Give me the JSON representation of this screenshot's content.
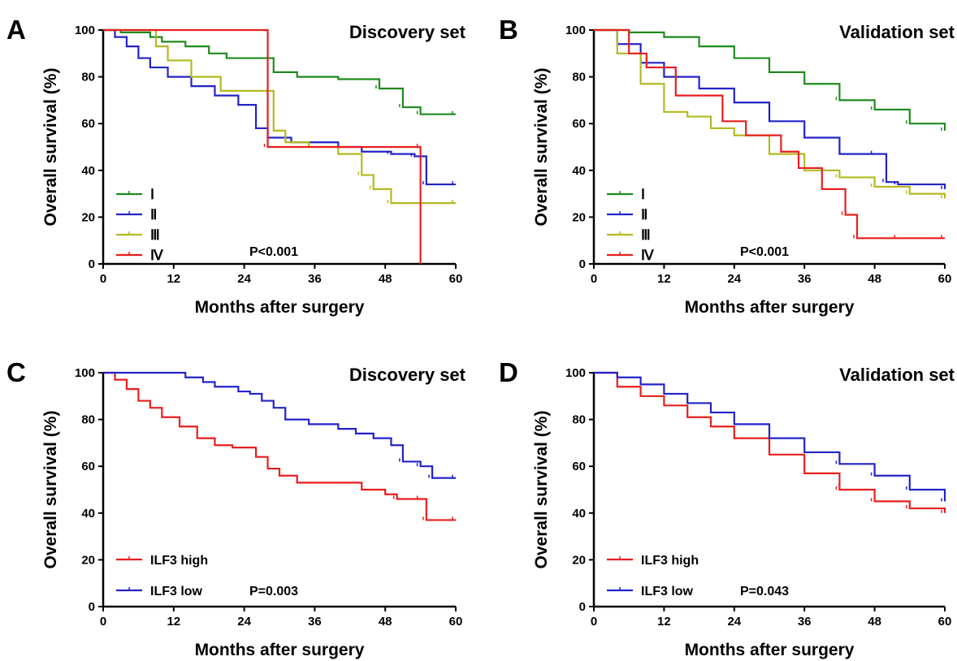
{
  "chart_data": [
    {
      "panel": "A",
      "type": "line",
      "title": "Discovery set",
      "xlabel": "Months after surgery",
      "ylabel": "Overall survival (%)",
      "xlim": [
        0,
        60
      ],
      "ylim": [
        0,
        100
      ],
      "xticks": [
        0,
        12,
        24,
        36,
        48,
        60
      ],
      "yticks": [
        0,
        20,
        40,
        60,
        80,
        100
      ],
      "pvalue": "P<0.001",
      "legend_style": "roman",
      "legend_placement": "bottom-left",
      "series": [
        {
          "name": "Ⅰ",
          "color": "#1e8a1e",
          "x": [
            0,
            3,
            8,
            10,
            14,
            18,
            21,
            27,
            29,
            33,
            40,
            47,
            51,
            54,
            60
          ],
          "y": [
            100,
            99,
            97,
            95,
            93,
            90,
            88,
            88,
            82,
            80,
            79,
            75,
            67,
            64,
            64
          ]
        },
        {
          "name": "Ⅱ",
          "color": "#2323c8",
          "x": [
            0,
            2,
            4,
            6,
            8,
            11,
            15,
            19,
            23,
            26,
            28,
            32,
            40,
            44,
            49,
            53,
            55,
            60
          ],
          "y": [
            100,
            97,
            93,
            88,
            84,
            80,
            76,
            72,
            68,
            58,
            54,
            52,
            50,
            48,
            47,
            46,
            34,
            34
          ]
        },
        {
          "name": "Ⅲ",
          "color": "#b5b820",
          "x": [
            0,
            2,
            9,
            11,
            15,
            20,
            27,
            29,
            31,
            35,
            40,
            44,
            46,
            49,
            60
          ],
          "y": [
            100,
            100,
            93,
            87,
            80,
            74,
            74,
            57,
            52,
            50,
            47,
            38,
            32,
            26,
            26
          ]
        },
        {
          "name": "Ⅳ",
          "color": "#e81e1e",
          "x": [
            0,
            28,
            54,
            54
          ],
          "y": [
            100,
            50,
            50,
            0
          ]
        }
      ]
    },
    {
      "panel": "B",
      "type": "line",
      "title": "Validation set",
      "xlabel": "Months after surgery",
      "ylabel": "Overall survival (%)",
      "xlim": [
        0,
        60
      ],
      "ylim": [
        0,
        100
      ],
      "xticks": [
        0,
        12,
        24,
        36,
        48,
        60
      ],
      "yticks": [
        0,
        20,
        40,
        60,
        80,
        100
      ],
      "pvalue": "P<0.001",
      "legend_style": "roman",
      "legend_placement": "bottom-left",
      "series": [
        {
          "name": "Ⅰ",
          "color": "#1e8a1e",
          "x": [
            0,
            6,
            12,
            18,
            24,
            30,
            36,
            42,
            48,
            54,
            60
          ],
          "y": [
            100,
            99,
            97,
            93,
            88,
            82,
            77,
            70,
            66,
            60,
            57
          ]
        },
        {
          "name": "Ⅱ",
          "color": "#2323c8",
          "x": [
            0,
            4,
            8,
            12,
            18,
            24,
            30,
            36,
            42,
            48,
            50,
            52,
            60
          ],
          "y": [
            100,
            94,
            86,
            80,
            75,
            69,
            61,
            54,
            47,
            47,
            35,
            34,
            32
          ]
        },
        {
          "name": "Ⅲ",
          "color": "#b5b820",
          "x": [
            0,
            4,
            8,
            12,
            16,
            20,
            24,
            30,
            36,
            42,
            48,
            54,
            60
          ],
          "y": [
            100,
            90,
            77,
            65,
            63,
            58,
            55,
            47,
            40,
            37,
            33,
            30,
            28
          ]
        },
        {
          "name": "Ⅳ",
          "color": "#e81e1e",
          "x": [
            0,
            6,
            9,
            14,
            19,
            22,
            26,
            32,
            35,
            39,
            43,
            45,
            52,
            60
          ],
          "y": [
            100,
            90,
            84,
            72,
            72,
            61,
            55,
            48,
            41,
            32,
            21,
            11,
            11,
            11
          ]
        }
      ]
    },
    {
      "panel": "C",
      "type": "line",
      "title": "Discovery set",
      "xlabel": "Months after surgery",
      "ylabel": "Overall survival (%)",
      "xlim": [
        0,
        60
      ],
      "ylim": [
        0,
        100
      ],
      "xticks": [
        0,
        12,
        24,
        36,
        48,
        60
      ],
      "yticks": [
        0,
        20,
        40,
        60,
        80,
        100
      ],
      "pvalue": "P=0.003",
      "legend_style": "text",
      "legend_placement": "bottom-left",
      "series": [
        {
          "name": "ILF3 high",
          "color": "#e81e1e",
          "x": [
            0,
            2,
            4,
            6,
            8,
            10,
            13,
            16,
            19,
            22,
            26,
            28,
            30,
            33,
            40,
            44,
            48,
            50,
            54,
            55,
            60
          ],
          "y": [
            100,
            97,
            93,
            88,
            85,
            81,
            77,
            72,
            69,
            68,
            64,
            59,
            56,
            53,
            53,
            50,
            48,
            46,
            46,
            37,
            37
          ]
        },
        {
          "name": "ILF3 low",
          "color": "#2323c8",
          "x": [
            0,
            10,
            14,
            17,
            19,
            23,
            25,
            27,
            29,
            31,
            35,
            40,
            43,
            46,
            49,
            51,
            54,
            56,
            60
          ],
          "y": [
            100,
            100,
            98,
            96,
            94,
            92,
            91,
            88,
            85,
            80,
            78,
            76,
            74,
            72,
            69,
            62,
            60,
            55,
            55
          ]
        }
      ]
    },
    {
      "panel": "D",
      "type": "line",
      "title": "Validation set",
      "xlabel": "Months after surgery",
      "ylabel": "Overall survival (%)",
      "xlim": [
        0,
        60
      ],
      "ylim": [
        0,
        100
      ],
      "xticks": [
        0,
        12,
        24,
        36,
        48,
        60
      ],
      "yticks": [
        0,
        20,
        40,
        60,
        80,
        100
      ],
      "pvalue": "P=0.043",
      "legend_style": "text",
      "legend_placement": "bottom-left",
      "series": [
        {
          "name": "ILF3 high",
          "color": "#e81e1e",
          "x": [
            0,
            4,
            8,
            12,
            16,
            20,
            24,
            30,
            36,
            42,
            48,
            54,
            60
          ],
          "y": [
            100,
            94,
            90,
            86,
            81,
            77,
            72,
            65,
            57,
            50,
            45,
            42,
            40
          ]
        },
        {
          "name": "ILF3 low",
          "color": "#2323c8",
          "x": [
            0,
            4,
            8,
            12,
            16,
            20,
            24,
            30,
            36,
            42,
            48,
            54,
            60
          ],
          "y": [
            100,
            98,
            95,
            91,
            87,
            83,
            78,
            72,
            66,
            61,
            56,
            50,
            45
          ]
        }
      ]
    }
  ]
}
